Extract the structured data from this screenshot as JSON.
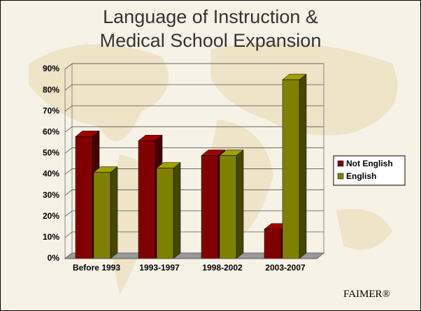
{
  "chart_data": {
    "type": "bar3d",
    "title": "Language of Instruction & Medical School Expansion",
    "categories": [
      "Before 1993",
      "1993-1997",
      "1998-2002",
      "2003-2007"
    ],
    "series": [
      {
        "name": "Not English",
        "color": "#800000",
        "values": [
          58,
          56,
          49,
          14
        ]
      },
      {
        "name": "English",
        "color": "#808000",
        "values": [
          41,
          43,
          49,
          85
        ]
      }
    ],
    "ylim": [
      0,
      90
    ],
    "yticks": [
      {
        "value": 0,
        "label": "0%"
      },
      {
        "value": 10,
        "label": "10%"
      },
      {
        "value": 20,
        "label": "20%"
      },
      {
        "value": 30,
        "label": "30%"
      },
      {
        "value": 40,
        "label": "40%"
      },
      {
        "value": 50,
        "label": "50%"
      },
      {
        "value": 60,
        "label": "60%"
      },
      {
        "value": 70,
        "label": "70%"
      },
      {
        "value": 80,
        "label": "80%"
      },
      {
        "value": 90,
        "label": "90%"
      }
    ],
    "grid": true,
    "legend": "right"
  },
  "footer": "FAIMER®"
}
